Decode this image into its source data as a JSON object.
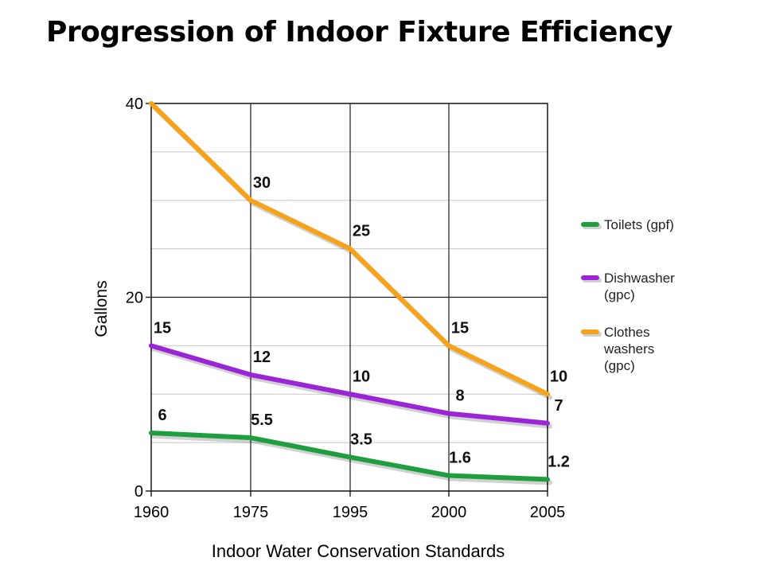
{
  "title": "Progression of Indoor Fixture Efficiency",
  "caption": "Indoor Water Conservation Standards",
  "chart_data": {
    "type": "line",
    "x": [
      "1960",
      "1975",
      "1995",
      "2000",
      "2005"
    ],
    "ylabel": "Gallons",
    "ylim": [
      0,
      40
    ],
    "yticks": [
      "0",
      "20",
      "40"
    ],
    "grid": true,
    "legend_position": "right",
    "series": [
      {
        "name": [
          "Toilets (gpf)"
        ],
        "color": "#1e9e3e",
        "values": [
          6,
          5.5,
          3.5,
          1.6,
          1.2
        ],
        "labels": [
          "6",
          "5.5",
          "3.5",
          "1.6",
          "1.2"
        ]
      },
      {
        "name": [
          "Dishwasher",
          "(gpc)"
        ],
        "color": "#9b25d6",
        "values": [
          15,
          12,
          10,
          8,
          7
        ],
        "labels": [
          "15",
          "12",
          "10",
          "8",
          "7"
        ]
      },
      {
        "name": [
          "Clothes",
          "washers",
          "(gpc)"
        ],
        "color": "#f7a21b",
        "values": [
          40,
          30,
          25,
          15,
          10
        ],
        "labels": [
          "",
          "30",
          "25",
          "15",
          "10"
        ]
      }
    ]
  }
}
